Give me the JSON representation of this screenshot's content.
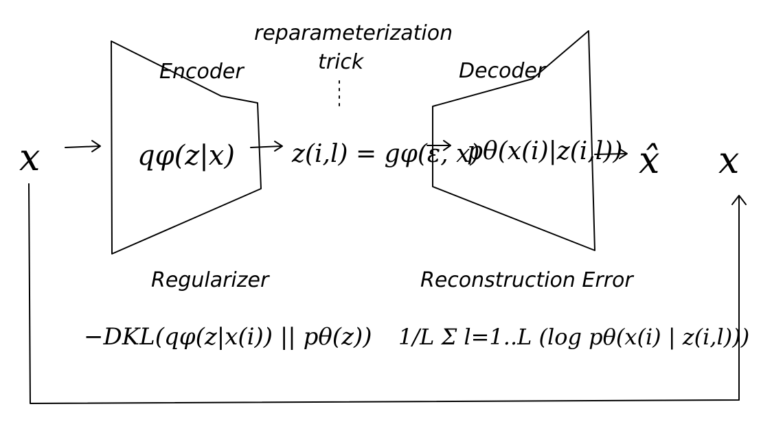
{
  "labels": {
    "encoder": "Encoder",
    "decoder": "Decoder",
    "reparam_line1": "reparameterization",
    "reparam_line2": "trick",
    "regularizer": "Regularizer",
    "reconstruction": "Reconstruction Error"
  },
  "symbols": {
    "input_x": "x",
    "encoder_formula": "qφ(z|x)",
    "z_sample": "z(i,l) = gφ(ε, x)",
    "decoder_formula": "pθ(x(i)|z(i,l))",
    "output_xhat": "x̂",
    "target_x": "x",
    "regularizer_formula": "−DKL(qφ(z|x(i)) || pθ(z))",
    "reconstruction_formula": "1/L Σ l=1..L (log pθ(x(i) | z(i,l)))"
  }
}
